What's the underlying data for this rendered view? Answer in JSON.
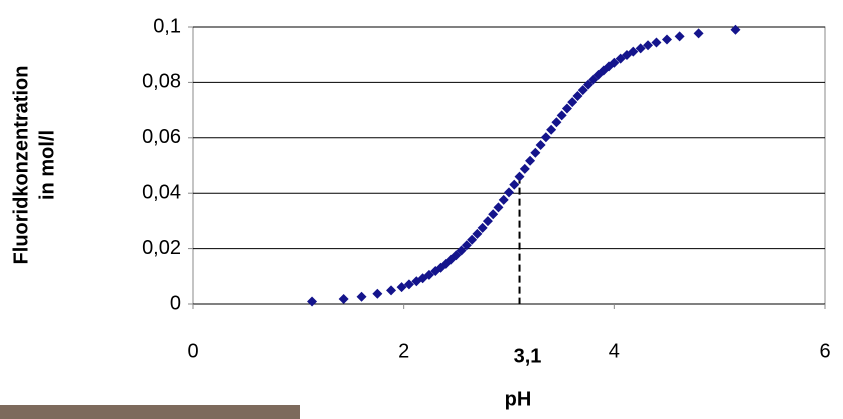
{
  "chart_data": {
    "type": "scatter",
    "xlabel": "pH",
    "ylabel": [
      "Fluoridkonzentration",
      "in mol/l"
    ],
    "x": [
      1.13,
      1.43,
      1.6,
      1.75,
      1.88,
      1.98,
      2.05,
      2.12,
      2.18,
      2.24,
      2.3,
      2.35,
      2.4,
      2.45,
      2.5,
      2.55,
      2.6,
      2.65,
      2.7,
      2.75,
      2.8,
      2.85,
      2.9,
      2.95,
      3.0,
      3.05,
      3.1,
      3.15,
      3.2,
      3.25,
      3.3,
      3.35,
      3.4,
      3.45,
      3.5,
      3.55,
      3.6,
      3.65,
      3.7,
      3.75,
      3.8,
      3.85,
      3.9,
      3.95,
      4.0,
      4.06,
      4.12,
      4.18,
      4.25,
      4.32,
      4.4,
      4.5,
      4.62,
      4.8,
      5.15
    ],
    "values": [
      0.0009,
      0.0018,
      0.0026,
      0.0037,
      0.0049,
      0.0061,
      0.0071,
      0.0082,
      0.0093,
      0.0105,
      0.0119,
      0.0131,
      0.0145,
      0.016,
      0.0176,
      0.0193,
      0.0212,
      0.0232,
      0.0253,
      0.0275,
      0.0299,
      0.0324,
      0.0349,
      0.0376,
      0.0403,
      0.0431,
      0.046,
      0.0488,
      0.0517,
      0.0546,
      0.0574,
      0.0602,
      0.0629,
      0.0656,
      0.0681,
      0.0706,
      0.0729,
      0.0751,
      0.0772,
      0.0792,
      0.081,
      0.0827,
      0.0843,
      0.0858,
      0.0871,
      0.0886,
      0.0899,
      0.0911,
      0.0923,
      0.0934,
      0.0944,
      0.0955,
      0.0966,
      0.0977,
      0.099
    ],
    "color": "#14148c",
    "xlim": [
      0,
      6
    ],
    "xticks": [
      0,
      2,
      4,
      6
    ],
    "ylim": [
      0,
      0.1
    ],
    "yticks": [
      0,
      {
        "value": 0.02,
        "label": "0,02"
      },
      {
        "value": 0.04,
        "label": "0,04"
      },
      {
        "value": 0.06,
        "label": "0,06"
      },
      {
        "value": 0.08,
        "label": "0,08"
      },
      {
        "value": 0.1,
        "label": "0,1"
      }
    ],
    "grid": true,
    "annotation": {
      "x": {
        "value": 3.1,
        "label": "3,1"
      },
      "y": 0.046
    }
  }
}
